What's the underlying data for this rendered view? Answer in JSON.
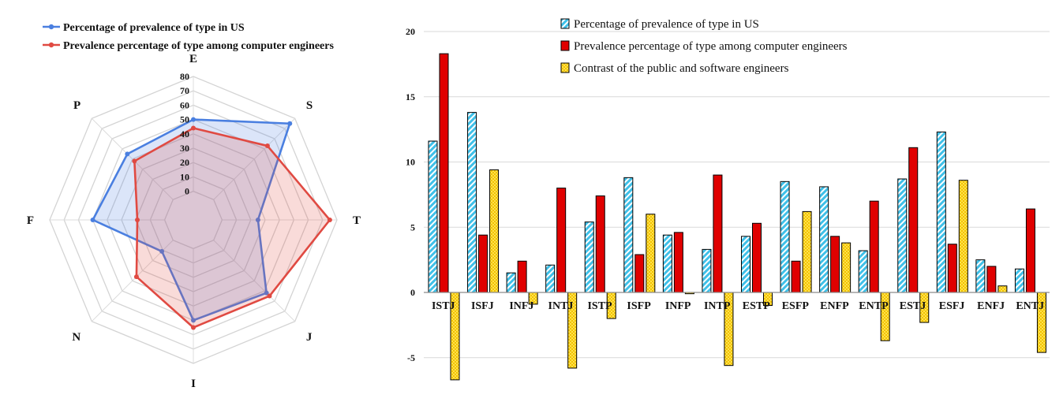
{
  "chart_data": [
    {
      "type": "radar",
      "axes": [
        "E",
        "S",
        "T",
        "J",
        "I",
        "N",
        "F",
        "P"
      ],
      "radial_ticks": [
        "0",
        "10",
        "20",
        "30",
        "40",
        "50",
        "60",
        "70",
        "80"
      ],
      "rlim": [
        -20,
        80
      ],
      "grid": true,
      "legend_position": "top-left",
      "series": [
        {
          "name": "Percentage of prevalence of type in US",
          "color": "#4a7fe0",
          "values": [
            50,
            75,
            25,
            52,
            50,
            11,
            50,
            45
          ]
        },
        {
          "name": "Prevalence percentage of type among computer engineers",
          "color": "#e04a42",
          "values": [
            44,
            53,
            75,
            55,
            55,
            36,
            19,
            38
          ]
        }
      ]
    },
    {
      "type": "bar",
      "categories": [
        "ISTJ",
        "ISFJ",
        "INFJ",
        "INTJ",
        "ISTP",
        "ISFP",
        "INFP",
        "INTP",
        "ESTP",
        "ESFP",
        "ENFP",
        "ENTP",
        "ESTJ",
        "ESFJ",
        "ENFJ",
        "ENTJ"
      ],
      "ylim": [
        -6,
        20
      ],
      "yticks": [
        "20",
        "15",
        "10",
        "5",
        "0",
        "-5"
      ],
      "grid": true,
      "legend_position": "top-center",
      "series": [
        {
          "name": "Percentage of prevalence of type in US",
          "color": "#3fc0e8",
          "values": [
            11.6,
            13.8,
            1.5,
            2.1,
            5.4,
            8.8,
            4.4,
            3.3,
            4.3,
            8.5,
            8.1,
            3.2,
            8.7,
            12.3,
            2.5,
            1.8
          ]
        },
        {
          "name": "Prevalence percentage of type among computer engineers",
          "color": "#e00000",
          "values": [
            18.3,
            4.4,
            2.4,
            8.0,
            7.4,
            2.9,
            4.6,
            9.0,
            5.3,
            2.4,
            4.3,
            7.0,
            11.1,
            3.7,
            2.0,
            6.4
          ]
        },
        {
          "name": "Contrast of the public and software engineers",
          "color": "#f2c200",
          "values": [
            -6.7,
            9.4,
            -0.9,
            -5.8,
            -2.0,
            6.0,
            -0.1,
            -5.6,
            -1.0,
            6.2,
            3.8,
            -3.7,
            -2.3,
            8.6,
            0.5,
            -4.6
          ]
        }
      ]
    }
  ]
}
